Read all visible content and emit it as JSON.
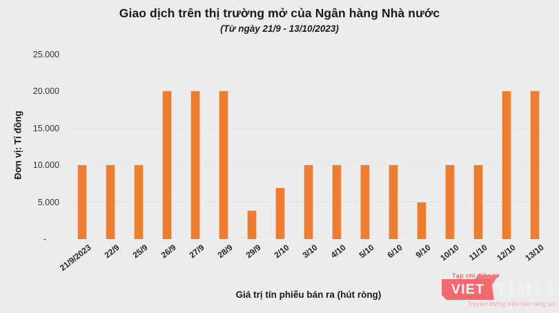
{
  "chart_data": {
    "type": "bar",
    "title": "Giao dịch trên thị trường mở của Ngân hàng Nhà nước",
    "subtitle": "(Từ ngày 21/9 - 13/10/2023)",
    "ylabel": "Đơn vị: Tỉ đồng",
    "xlabel": "Giá trị tín phiếu bán ra (hút ròng)",
    "categories": [
      "21/9/2023",
      "22/9",
      "25/9",
      "26/9",
      "27/9",
      "28/9",
      "29/9",
      "2/10",
      "3/10",
      "4/10",
      "5/10",
      "6/10",
      "9/10",
      "10/10",
      "11/10",
      "12/10",
      "13/10"
    ],
    "values": [
      10000,
      10000,
      10000,
      20000,
      20000,
      20000,
      3800,
      6900,
      10000,
      10000,
      10000,
      10000,
      5000,
      10000,
      10000,
      20000,
      20000
    ],
    "ylim": [
      0,
      25000
    ],
    "yticks": [
      0,
      5000,
      10000,
      15000,
      20000,
      25000
    ],
    "ytick_labels": [
      "-",
      "5.000",
      "10.000",
      "15.000",
      "20.000",
      "25.000"
    ],
    "grid": true,
    "legend": "none",
    "bar_color": "#ED7D31"
  },
  "colors": {
    "background": "#ECECEC",
    "bar": "#ED7D31",
    "gridline": "#DCDCDC",
    "text": "#262626"
  },
  "watermark": {
    "caption": "Tạp chí điện tử",
    "brand_primary": "VIET",
    "brand_secondary": "TIMES",
    "tagline": "Truyền thông trên nền tảng số",
    "brand_color": "#F4696E"
  }
}
